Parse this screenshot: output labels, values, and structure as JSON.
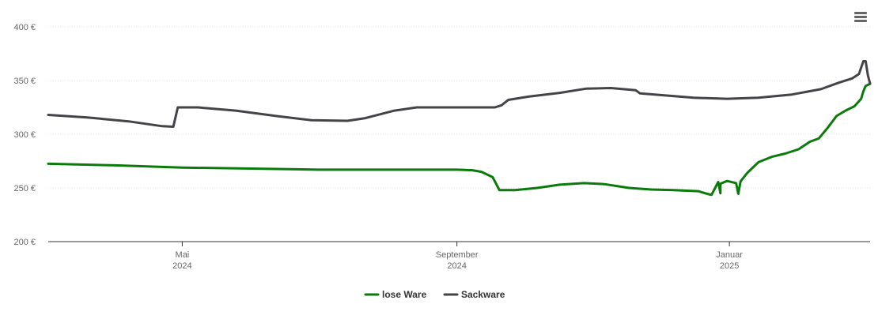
{
  "menu": {
    "icon": "hamburger-menu-icon"
  },
  "chart_data": {
    "type": "line",
    "title": "",
    "xlabel": "",
    "ylabel": "",
    "ylim": [
      200,
      400
    ],
    "y_ticks": [
      {
        "value": 200,
        "label": "200 €"
      },
      {
        "value": 250,
        "label": "250 €"
      },
      {
        "value": 300,
        "label": "300 €"
      },
      {
        "value": 350,
        "label": "350 €"
      },
      {
        "value": 400,
        "label": "400 €"
      }
    ],
    "xlim": [
      "2024-03-02",
      "2025-03-05"
    ],
    "x_ticks": [
      {
        "date": "2024-05-01",
        "label": "Mai",
        "year": "2024"
      },
      {
        "date": "2024-09-01",
        "label": "September",
        "year": "2024"
      },
      {
        "date": "2025-01-01",
        "label": "Januar",
        "year": "2025"
      }
    ],
    "grid": true,
    "legend": "bottom-center",
    "series": [
      {
        "name": "lose Ware",
        "color": "#0a7a0a",
        "points": [
          [
            "2024-03-02",
            272.5
          ],
          [
            "2024-04-01",
            271
          ],
          [
            "2024-05-01",
            269
          ],
          [
            "2024-06-01",
            268
          ],
          [
            "2024-07-01",
            267
          ],
          [
            "2024-08-01",
            267
          ],
          [
            "2024-09-01",
            267
          ],
          [
            "2024-09-08",
            266.5
          ],
          [
            "2024-09-12",
            265
          ],
          [
            "2024-09-17",
            260
          ],
          [
            "2024-09-20",
            248
          ],
          [
            "2024-09-27",
            248
          ],
          [
            "2024-10-07",
            250
          ],
          [
            "2024-10-17",
            253
          ],
          [
            "2024-10-28",
            254.5
          ],
          [
            "2024-11-06",
            253.5
          ],
          [
            "2024-11-17",
            250
          ],
          [
            "2024-11-27",
            248.5
          ],
          [
            "2024-12-07",
            248
          ],
          [
            "2024-12-18",
            247
          ],
          [
            "2024-12-28",
            245
          ],
          [
            "2025-01-05",
            244.5
          ],
          [
            "2024-12-23",
            244
          ],
          [
            "2024-12-24",
            243.5
          ],
          [
            "2024-12-27",
            255.5
          ],
          [
            "2024-12-28",
            254
          ],
          [
            "2024-12-31",
            256.5
          ],
          [
            "2025-01-04",
            254.5
          ],
          [
            "2025-01-06",
            256
          ],
          [
            "2025-01-09",
            264
          ],
          [
            "2025-01-14",
            274
          ],
          [
            "2025-01-20",
            279
          ],
          [
            "2025-01-26",
            282
          ],
          [
            "2025-02-01",
            286
          ],
          [
            "2025-02-06",
            293
          ],
          [
            "2025-02-10",
            296
          ],
          [
            "2025-02-14",
            306
          ],
          [
            "2025-02-18",
            317
          ],
          [
            "2025-02-22",
            322
          ],
          [
            "2025-02-26",
            326
          ],
          [
            "2025-03-01",
            333
          ],
          [
            "2025-03-02",
            340
          ],
          [
            "2025-03-03",
            345
          ],
          [
            "2025-03-05",
            347
          ]
        ]
      },
      {
        "name": "Sackware",
        "color": "#434348",
        "points": [
          [
            "2024-03-02",
            318
          ],
          [
            "2024-03-20",
            315.5
          ],
          [
            "2024-04-07",
            312
          ],
          [
            "2024-04-22",
            307.5
          ],
          [
            "2024-04-27",
            307
          ],
          [
            "2024-04-29",
            325
          ],
          [
            "2024-05-08",
            325
          ],
          [
            "2024-05-25",
            322
          ],
          [
            "2024-06-12",
            317
          ],
          [
            "2024-06-28",
            313
          ],
          [
            "2024-07-14",
            312.5
          ],
          [
            "2024-07-22",
            315
          ],
          [
            "2024-08-04",
            322
          ],
          [
            "2024-08-14",
            325
          ],
          [
            "2024-08-31",
            325
          ],
          [
            "2024-09-18",
            325
          ],
          [
            "2024-09-21",
            327
          ],
          [
            "2024-09-24",
            332
          ],
          [
            "2024-10-03",
            335
          ],
          [
            "2024-10-17",
            338.5
          ],
          [
            "2024-10-29",
            342.5
          ],
          [
            "2024-11-09",
            343
          ],
          [
            "2024-11-20",
            341
          ],
          [
            "2024-11-22",
            338
          ],
          [
            "2024-12-04",
            336
          ],
          [
            "2024-12-16",
            334
          ],
          [
            "2024-12-31",
            333
          ],
          [
            "2025-01-14",
            334
          ],
          [
            "2025-01-29",
            337
          ],
          [
            "2025-02-11",
            342
          ],
          [
            "2025-02-19",
            348
          ],
          [
            "2025-02-25",
            352
          ],
          [
            "2025-02-28",
            356
          ],
          [
            "2025-03-02",
            368
          ],
          [
            "2025-03-03",
            368
          ],
          [
            "2025-03-04",
            355
          ],
          [
            "2025-03-05",
            347
          ]
        ]
      }
    ]
  }
}
